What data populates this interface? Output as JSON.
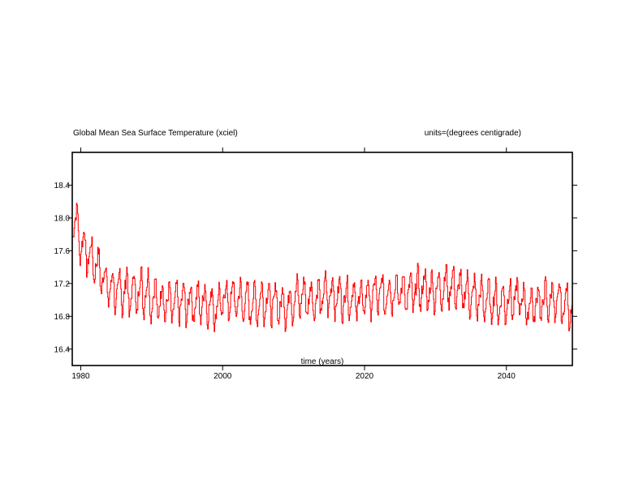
{
  "chart_data": {
    "type": "line",
    "title": "Global Mean Sea Surface Temperature (xciel)",
    "units_label": "units=(degrees centigrade)",
    "xlabel": "time (years)",
    "ylabel": "",
    "xlim": [
      1978.8,
      2049.3
    ],
    "ylim": [
      16.2,
      18.8
    ],
    "x_ticks": [
      1980,
      2000,
      2020,
      2040
    ],
    "x_tick_labels": [
      "1980",
      "2000",
      "2020",
      "2040"
    ],
    "y_ticks": [
      16.4,
      16.8,
      17.2,
      17.6,
      18.0,
      18.4
    ],
    "y_tick_labels": [
      "16.4",
      "16.8",
      "17.2",
      "17.6",
      "18.0",
      "18.4"
    ],
    "grid": false,
    "legend": "none",
    "line_color": "#ff0000",
    "series": [
      {
        "sampling": "monthly",
        "x": [
          1978.8,
          1979.3,
          1980,
          1981,
          1982,
          1983,
          1984,
          1985,
          1986,
          1987,
          1988,
          1989,
          1990,
          1991,
          1992,
          1993,
          1994,
          1995,
          1996,
          1997,
          1998,
          1999,
          2000,
          2001,
          2002,
          2003,
          2004,
          2005,
          2006,
          2007,
          2008,
          2009,
          2010,
          2011,
          2012,
          2013,
          2014,
          2015,
          2016,
          2017,
          2018,
          2019,
          2020,
          2021,
          2022,
          2023,
          2024,
          2025,
          2026,
          2027,
          2028,
          2029,
          2030,
          2031,
          2032,
          2033,
          2034,
          2035,
          2036,
          2037,
          2038,
          2039,
          2040,
          2041,
          2042,
          2043,
          2044,
          2045,
          2046,
          2047,
          2048,
          2049.3
        ],
        "annual_mean": [
          18.0,
          17.95,
          17.7,
          17.55,
          17.45,
          17.3,
          17.15,
          17.1,
          17.12,
          17.08,
          17.1,
          17.12,
          17.02,
          17.0,
          16.98,
          16.95,
          16.98,
          16.97,
          16.96,
          16.98,
          16.95,
          16.9,
          17.0,
          17.02,
          17.0,
          16.98,
          16.95,
          16.96,
          17.0,
          16.97,
          16.95,
          16.92,
          17.0,
          17.05,
          17.02,
          17.0,
          17.05,
          17.08,
          17.05,
          17.02,
          17.03,
          17.0,
          17.02,
          17.05,
          17.08,
          17.06,
          17.1,
          17.12,
          17.08,
          17.1,
          17.15,
          17.1,
          17.12,
          17.15,
          17.18,
          17.12,
          17.1,
          17.05,
          17.02,
          17.0,
          16.98,
          16.96,
          16.98,
          17.0,
          17.02,
          16.9,
          16.95,
          16.98,
          17.0,
          16.97,
          16.95,
          16.92
        ],
        "seasonal_half_amplitude": [
          0.2,
          0.22,
          0.22,
          0.2,
          0.2,
          0.2,
          0.2,
          0.22,
          0.25,
          0.25,
          0.25,
          0.25,
          0.22,
          0.22,
          0.2,
          0.2,
          0.2,
          0.2,
          0.2,
          0.2,
          0.2,
          0.2,
          0.2,
          0.2,
          0.2,
          0.2,
          0.2,
          0.2,
          0.2,
          0.2,
          0.2,
          0.2,
          0.2,
          0.2,
          0.2,
          0.2,
          0.2,
          0.2,
          0.2,
          0.2,
          0.2,
          0.2,
          0.2,
          0.2,
          0.2,
          0.2,
          0.2,
          0.2,
          0.2,
          0.2,
          0.22,
          0.2,
          0.2,
          0.22,
          0.2,
          0.2,
          0.2,
          0.2,
          0.2,
          0.2,
          0.2,
          0.2,
          0.2,
          0.2,
          0.2,
          0.2,
          0.2,
          0.2,
          0.2,
          0.22,
          0.2,
          0.2
        ],
        "y_min_observed": 16.55,
        "y_max_observed": 18.3
      }
    ]
  }
}
